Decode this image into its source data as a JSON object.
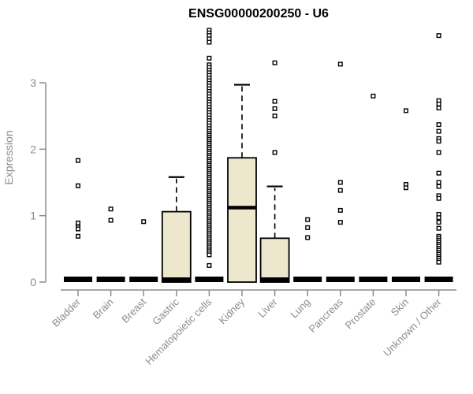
{
  "chart_data": {
    "type": "boxplot",
    "title": "ENSG00000200250 - U6",
    "xlabel": "",
    "ylabel": "Expression",
    "y_ticks": [
      0,
      1,
      2,
      3
    ],
    "ylim": [
      0,
      3.9
    ],
    "grid": false,
    "legend": "none",
    "colors": {
      "box_fill": "#EDE8CD",
      "box_line": "#000000",
      "outlier": "#000000",
      "axis": "#8C8C8C",
      "tick_label": "#8C8C8C",
      "title": "#000000",
      "background": "#FFFFFF"
    },
    "categories": [
      "Bladder",
      "Brain",
      "Breast",
      "Gastric",
      "Hematopoietic cells",
      "Kidney",
      "Liver",
      "Lung",
      "Pancreas",
      "Prostate",
      "Skin",
      "Unknown / Other"
    ],
    "boxes": [
      {
        "label": "Bladder",
        "q1": 0,
        "median": 0,
        "q3": 0,
        "whisker_low": 0,
        "whisker_high": 0,
        "outliers": [
          1.83,
          1.45,
          0.89,
          0.83,
          0.8,
          0.69
        ]
      },
      {
        "label": "Brain",
        "q1": 0,
        "median": 0,
        "q3": 0,
        "whisker_low": 0,
        "whisker_high": 0,
        "outliers": [
          1.1,
          0.93
        ]
      },
      {
        "label": "Breast",
        "q1": 0,
        "median": 0,
        "q3": 0,
        "whisker_low": 0,
        "whisker_high": 0,
        "outliers": [
          0.91
        ]
      },
      {
        "label": "Gastric",
        "q1": 0,
        "median": 0,
        "q3": 1.06,
        "whisker_low": 0,
        "whisker_high": 1.58,
        "outliers": []
      },
      {
        "label": "Hematopoietic cells",
        "q1": 0,
        "median": 0,
        "q3": 0,
        "whisker_low": 0,
        "whisker_high": 0,
        "outliers": [
          3.79,
          3.75,
          3.71,
          3.66,
          3.61,
          3.37,
          3.27,
          3.23,
          3.19,
          3.15,
          3.11,
          3.07,
          3.03,
          2.99,
          2.95,
          2.91,
          2.87,
          2.83,
          2.79,
          2.75,
          2.71,
          2.67,
          2.63,
          2.59,
          2.55,
          2.51,
          2.47,
          2.43,
          2.39,
          2.35,
          2.31,
          2.27,
          2.24,
          2.21,
          2.18,
          2.15,
          2.12,
          2.09,
          2.06,
          2.03,
          2.0,
          1.97,
          1.94,
          1.91,
          1.88,
          1.85,
          1.82,
          1.79,
          1.76,
          1.73,
          1.7,
          1.67,
          1.64,
          1.61,
          1.58,
          1.55,
          1.52,
          1.49,
          1.46,
          1.43,
          1.4,
          1.37,
          1.34,
          1.31,
          1.28,
          1.25,
          1.22,
          1.19,
          1.16,
          1.13,
          1.1,
          1.07,
          1.04,
          1.01,
          0.98,
          0.95,
          0.92,
          0.89,
          0.86,
          0.83,
          0.8,
          0.77,
          0.74,
          0.71,
          0.68,
          0.65,
          0.62,
          0.59,
          0.56,
          0.53,
          0.5,
          0.47,
          0.44,
          0.41,
          0.25
        ]
      },
      {
        "label": "Kidney",
        "q1": 0,
        "median": 1.12,
        "q3": 1.87,
        "whisker_low": 0,
        "whisker_high": 2.97,
        "outliers": []
      },
      {
        "label": "Liver",
        "q1": 0,
        "median": 0,
        "q3": 0.66,
        "whisker_low": 0,
        "whisker_high": 1.44,
        "outliers": [
          3.3,
          2.72,
          2.61,
          2.5,
          1.95
        ]
      },
      {
        "label": "Lung",
        "q1": 0,
        "median": 0,
        "q3": 0,
        "whisker_low": 0,
        "whisker_high": 0,
        "outliers": [
          0.94,
          0.82,
          0.67
        ]
      },
      {
        "label": "Pancreas",
        "q1": 0,
        "median": 0,
        "q3": 0,
        "whisker_low": 0,
        "whisker_high": 0,
        "outliers": [
          3.28,
          1.5,
          1.38,
          1.08,
          0.9
        ]
      },
      {
        "label": "Prostate",
        "q1": 0,
        "median": 0,
        "q3": 0,
        "whisker_low": 0,
        "whisker_high": 0,
        "outliers": [
          2.8
        ]
      },
      {
        "label": "Skin",
        "q1": 0,
        "median": 0,
        "q3": 0,
        "whisker_low": 0,
        "whisker_high": 0,
        "outliers": [
          2.58,
          1.47,
          1.42
        ]
      },
      {
        "label": "Unknown / Other",
        "q1": 0,
        "median": 0,
        "q3": 0,
        "whisker_low": 0,
        "whisker_high": 0,
        "outliers": [
          3.71,
          2.73,
          2.68,
          2.62,
          2.37,
          2.27,
          2.16,
          2.12,
          1.95,
          1.64,
          1.5,
          1.44,
          1.3,
          1.26,
          1.02,
          0.97,
          0.9,
          0.81,
          0.69,
          0.66,
          0.63,
          0.6,
          0.57,
          0.54,
          0.51,
          0.48,
          0.45,
          0.42,
          0.39,
          0.36,
          0.33,
          0.3
        ]
      }
    ]
  }
}
